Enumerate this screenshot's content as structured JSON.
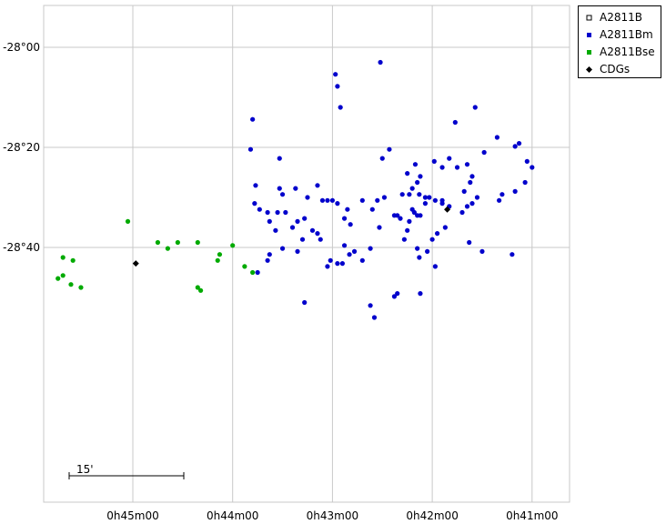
{
  "chart_data": {
    "type": "scatter",
    "title": "",
    "xlabel": "",
    "ylabel": "",
    "x_unit": "RA (min)",
    "y_unit": "Dec (arcmin)",
    "x_axis": {
      "reversed": true,
      "ticks": [
        45,
        44,
        43,
        42,
        41
      ],
      "tick_labels": [
        "0h45m00",
        "0h44m00",
        "0h43m00",
        "0h42m00",
        "0h41m00"
      ]
    },
    "y_axis": {
      "ticks": [
        -28.0,
        -28.333333,
        -28.666667
      ],
      "tick_labels": [
        "-28°00",
        "-28°20",
        "-28°40"
      ]
    },
    "grid": true,
    "legend_position": "top-right, outside",
    "scale_bar": {
      "label": "15'",
      "length_arcmin": 15
    },
    "series": [
      {
        "name": "A2811B",
        "marker": "open-square",
        "color": "#000000",
        "points": []
      },
      {
        "name": "A2811Bm",
        "marker": "circle",
        "color": "#0000cc",
        "points": [
          [
            42.52,
            -28.05
          ],
          [
            42.97,
            -28.09
          ],
          [
            42.95,
            -28.13
          ],
          [
            42.92,
            -28.2
          ],
          [
            41.57,
            -28.2
          ],
          [
            41.77,
            -28.25
          ],
          [
            41.35,
            -28.3
          ],
          [
            41.17,
            -28.33
          ],
          [
            41.13,
            -28.32
          ],
          [
            43.8,
            -28.24
          ],
          [
            43.82,
            -28.34
          ],
          [
            43.53,
            -28.37
          ],
          [
            42.5,
            -28.37
          ],
          [
            42.43,
            -28.34
          ],
          [
            41.48,
            -28.35
          ],
          [
            41.83,
            -28.37
          ],
          [
            41.9,
            -28.4
          ],
          [
            41.98,
            -28.38
          ],
          [
            42.17,
            -28.39
          ],
          [
            42.25,
            -28.42
          ],
          [
            42.12,
            -28.43
          ],
          [
            42.15,
            -28.45
          ],
          [
            42.2,
            -28.47
          ],
          [
            41.65,
            -28.39
          ],
          [
            41.75,
            -28.4
          ],
          [
            41.6,
            -28.43
          ],
          [
            41.62,
            -28.45
          ],
          [
            41.0,
            -28.4
          ],
          [
            41.05,
            -28.38
          ],
          [
            41.07,
            -28.45
          ],
          [
            41.68,
            -28.48
          ],
          [
            43.77,
            -28.46
          ],
          [
            43.53,
            -28.47
          ],
          [
            43.15,
            -28.46
          ],
          [
            43.25,
            -28.5
          ],
          [
            43.1,
            -28.51
          ],
          [
            43.05,
            -28.51
          ],
          [
            43.0,
            -28.51
          ],
          [
            43.37,
            -28.47
          ],
          [
            43.5,
            -28.49
          ],
          [
            43.78,
            -28.52
          ],
          [
            42.7,
            -28.51
          ],
          [
            42.6,
            -28.54
          ],
          [
            42.55,
            -28.51
          ],
          [
            42.48,
            -28.5
          ],
          [
            42.3,
            -28.49
          ],
          [
            42.23,
            -28.49
          ],
          [
            42.13,
            -28.49
          ],
          [
            42.07,
            -28.5
          ],
          [
            42.03,
            -28.5
          ],
          [
            41.97,
            -28.51
          ],
          [
            41.9,
            -28.52
          ],
          [
            41.83,
            -28.53
          ],
          [
            41.65,
            -28.53
          ],
          [
            41.6,
            -28.52
          ],
          [
            41.55,
            -28.5
          ],
          [
            41.3,
            -28.49
          ],
          [
            41.33,
            -28.51
          ],
          [
            41.17,
            -28.48
          ],
          [
            42.18,
            -28.55
          ],
          [
            42.12,
            -28.56
          ],
          [
            42.23,
            -28.58
          ],
          [
            42.32,
            -28.57
          ],
          [
            42.35,
            -28.56
          ],
          [
            42.38,
            -28.56
          ],
          [
            42.15,
            -28.56
          ],
          [
            42.2,
            -28.54
          ],
          [
            42.07,
            -28.52
          ],
          [
            41.9,
            -28.51
          ],
          [
            42.95,
            -28.52
          ],
          [
            42.85,
            -28.54
          ],
          [
            42.88,
            -28.57
          ],
          [
            42.82,
            -28.59
          ],
          [
            43.28,
            -28.57
          ],
          [
            43.35,
            -28.58
          ],
          [
            43.2,
            -28.61
          ],
          [
            43.15,
            -28.62
          ],
          [
            43.47,
            -28.55
          ],
          [
            43.55,
            -28.55
          ],
          [
            43.65,
            -28.55
          ],
          [
            43.73,
            -28.54
          ],
          [
            43.57,
            -28.61
          ],
          [
            43.63,
            -28.58
          ],
          [
            43.4,
            -28.6
          ],
          [
            43.3,
            -28.64
          ],
          [
            43.12,
            -28.64
          ],
          [
            42.88,
            -28.66
          ],
          [
            42.53,
            -28.6
          ],
          [
            42.25,
            -28.61
          ],
          [
            42.28,
            -28.64
          ],
          [
            42.0,
            -28.64
          ],
          [
            41.95,
            -28.62
          ],
          [
            41.87,
            -28.6
          ],
          [
            41.7,
            -28.55
          ],
          [
            41.63,
            -28.65
          ],
          [
            41.5,
            -28.68
          ],
          [
            42.78,
            -28.68
          ],
          [
            42.62,
            -28.67
          ],
          [
            42.83,
            -28.69
          ],
          [
            43.02,
            -28.71
          ],
          [
            42.95,
            -28.72
          ],
          [
            43.05,
            -28.73
          ],
          [
            42.9,
            -28.72
          ],
          [
            42.7,
            -28.71
          ],
          [
            43.35,
            -28.68
          ],
          [
            43.5,
            -28.67
          ],
          [
            43.63,
            -28.69
          ],
          [
            43.65,
            -28.71
          ],
          [
            42.15,
            -28.67
          ],
          [
            42.05,
            -28.68
          ],
          [
            42.13,
            -28.7
          ],
          [
            41.97,
            -28.73
          ],
          [
            42.35,
            -28.82
          ],
          [
            42.38,
            -28.83
          ],
          [
            42.62,
            -28.86
          ],
          [
            43.75,
            -28.75
          ],
          [
            43.28,
            -28.85
          ],
          [
            42.58,
            -28.9
          ],
          [
            42.12,
            -28.82
          ],
          [
            41.2,
            -28.69
          ]
        ]
      },
      {
        "name": "A2811Bse",
        "marker": "circle",
        "color": "#00aa00",
        "points": [
          [
            45.05,
            -28.58
          ],
          [
            45.7,
            -28.7
          ],
          [
            44.75,
            -28.65
          ],
          [
            44.65,
            -28.67
          ],
          [
            44.55,
            -28.65
          ],
          [
            44.35,
            -28.65
          ],
          [
            44.13,
            -28.69
          ],
          [
            44.0,
            -28.66
          ],
          [
            44.15,
            -28.71
          ],
          [
            43.88,
            -28.73
          ],
          [
            45.6,
            -28.71
          ],
          [
            45.7,
            -28.76
          ],
          [
            45.75,
            -28.77
          ],
          [
            45.62,
            -28.79
          ],
          [
            45.52,
            -28.8
          ],
          [
            44.35,
            -28.8
          ],
          [
            44.32,
            -28.81
          ],
          [
            43.8,
            -28.75
          ]
        ]
      },
      {
        "name": "CDGs",
        "marker": "diamond",
        "color": "#000000",
        "points": [
          [
            44.97,
            -28.72
          ],
          [
            41.85,
            -28.54
          ]
        ]
      }
    ]
  }
}
